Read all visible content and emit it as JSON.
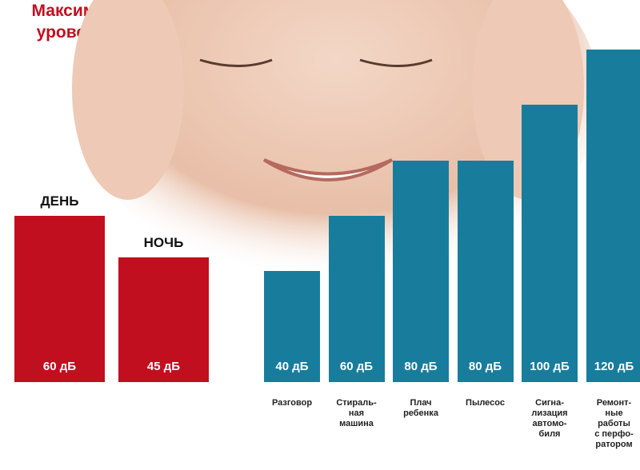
{
  "chart_data": [
    {
      "type": "bar",
      "title": "Максимальный уровень шума",
      "categories": [
        "ДЕНЬ",
        "НОЧЬ"
      ],
      "values": [
        60,
        45
      ],
      "value_labels": [
        "60 дБ",
        "45 дБ"
      ],
      "color": "#c10f1f"
    },
    {
      "type": "bar",
      "categories": [
        "Разговор",
        "Стираль-\nная\nмашина",
        "Плач\nребенка",
        "Пылесос",
        "Сигна-\nлизация\nавтомо-\nбиля",
        "Ремонт-\nные\nработы\nс перфо-\nратором"
      ],
      "values": [
        40,
        60,
        80,
        80,
        100,
        120
      ],
      "value_labels": [
        "40 дБ",
        "60 дБ",
        "80 дБ",
        "80 дБ",
        "100 дБ",
        "120 дБ"
      ],
      "color": "#187d9c"
    }
  ]
}
